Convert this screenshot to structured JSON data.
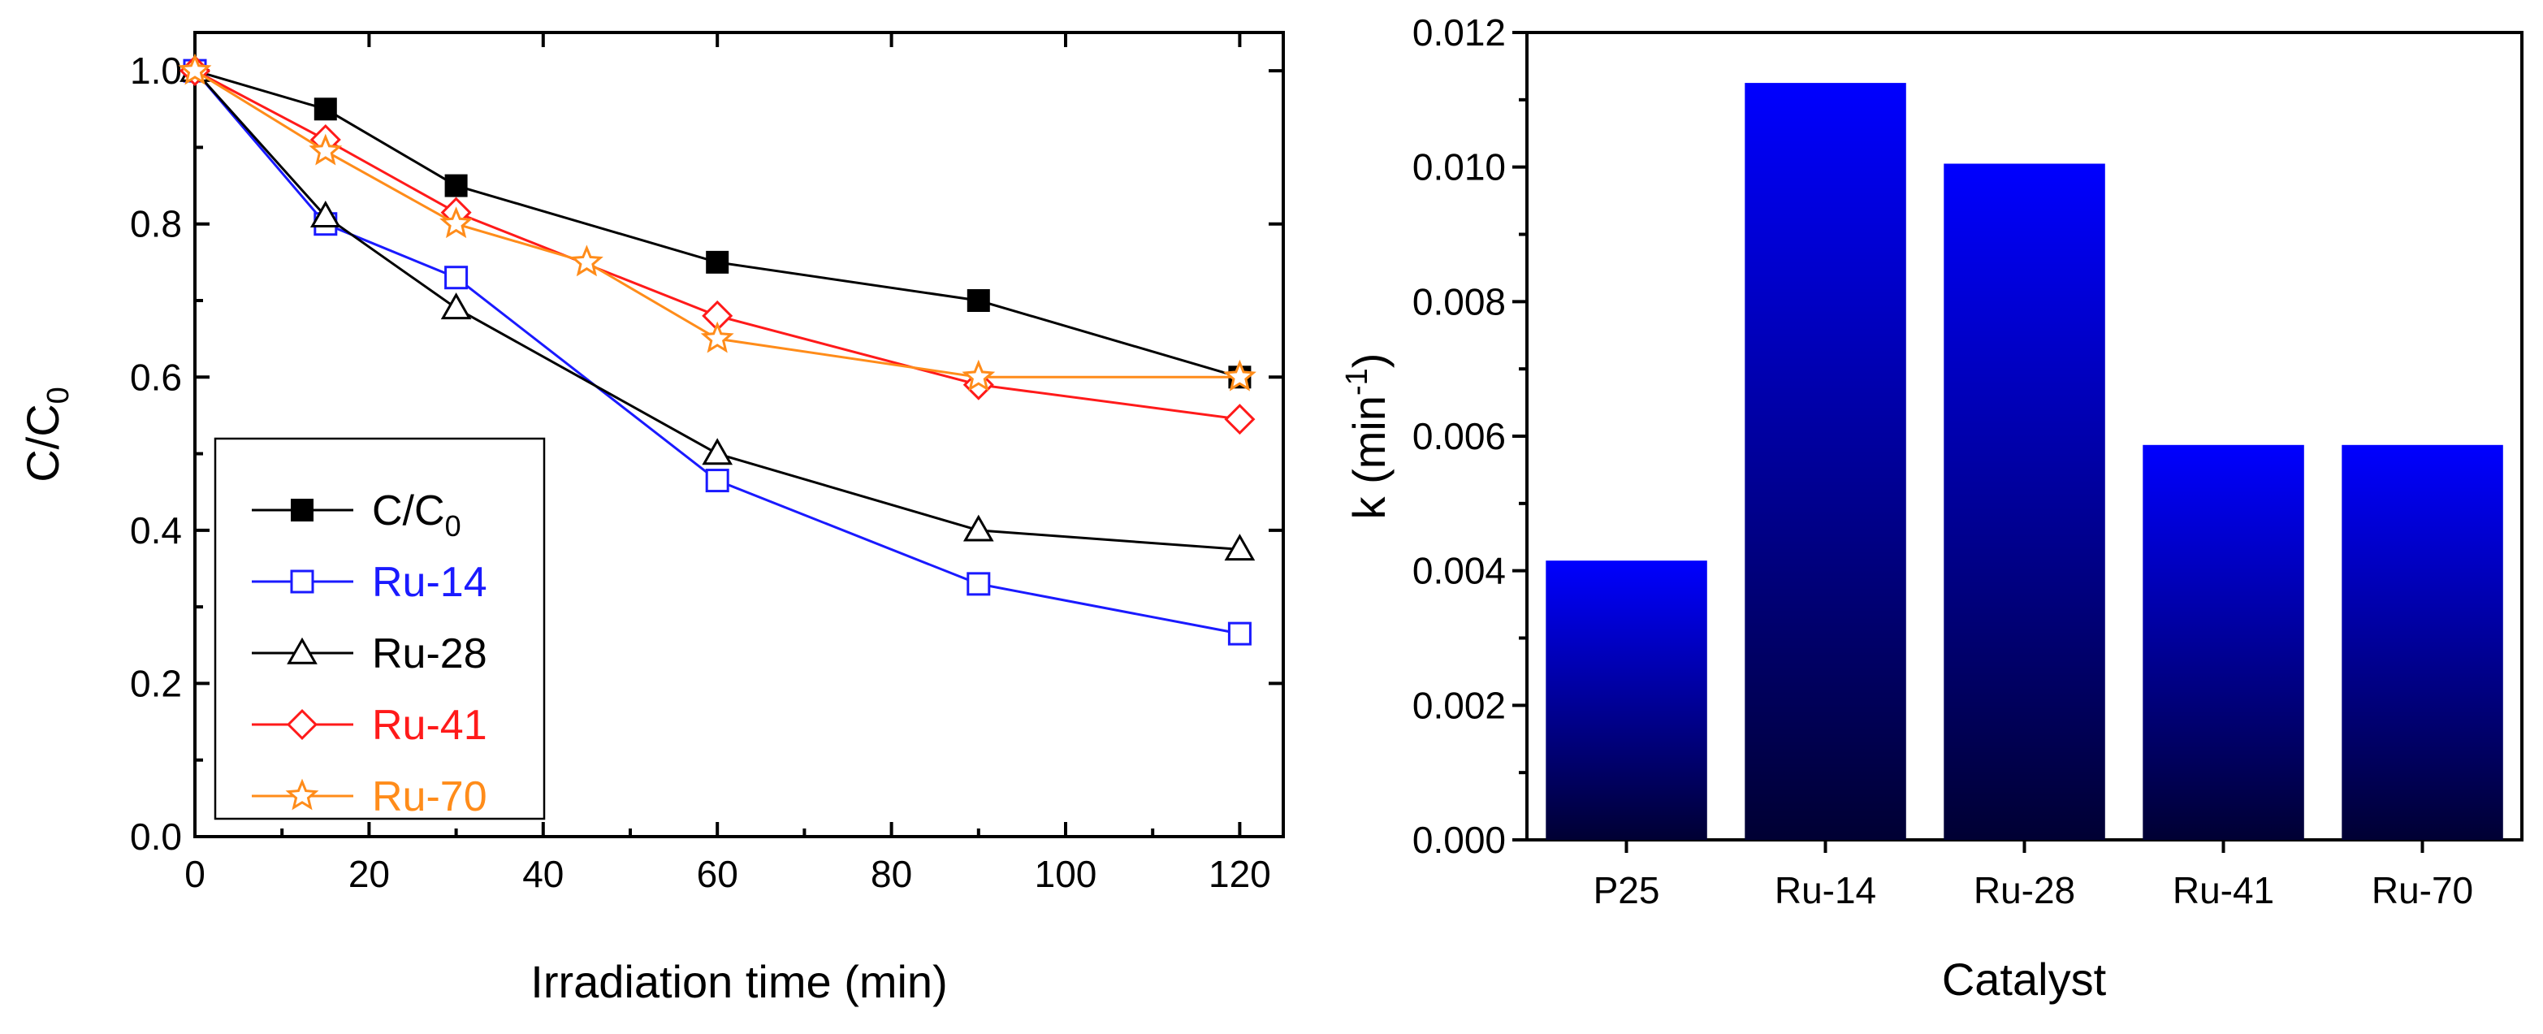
{
  "chart_data": [
    {
      "type": "line",
      "title": "",
      "xlabel": "Irradiation time (min)",
      "ylabel": "C/C",
      "ylabel_sub": "0",
      "xlim": [
        0,
        125
      ],
      "ylim": [
        0,
        1.05
      ],
      "xticks": [
        0,
        20,
        40,
        60,
        80,
        100,
        120
      ],
      "xtick_labels": [
        "0",
        "20",
        "40",
        "60",
        "80",
        "100",
        "120"
      ],
      "yticks": [
        0,
        0.2,
        0.4,
        0.6,
        0.8,
        1.0
      ],
      "ytick_labels": [
        "0.0",
        "0.2",
        "0.4",
        "0.6",
        "0.8",
        "1.0"
      ],
      "legend_position": "bottom-left",
      "series": [
        {
          "name": "C/C",
          "name_sub": "0",
          "color": "#000000",
          "marker": "filled-square",
          "x": [
            0,
            15,
            30,
            60,
            90,
            120
          ],
          "y": [
            1.0,
            0.95,
            0.85,
            0.75,
            0.7,
            0.6
          ]
        },
        {
          "name": "Ru-14",
          "color": "#1a1aff",
          "marker": "open-square",
          "x": [
            0,
            15,
            30,
            60,
            90,
            120
          ],
          "y": [
            1.0,
            0.8,
            0.73,
            0.465,
            0.33,
            0.265
          ]
        },
        {
          "name": "Ru-28",
          "color": "#000000",
          "marker": "open-triangle",
          "x": [
            0,
            15,
            30,
            60,
            90,
            120
          ],
          "y": [
            1.0,
            0.81,
            0.69,
            0.5,
            0.4,
            0.375
          ]
        },
        {
          "name": "Ru-41",
          "color": "#ff1a1a",
          "marker": "open-diamond",
          "x": [
            0,
            15,
            30,
            60,
            90,
            120
          ],
          "y": [
            1.0,
            0.91,
            0.815,
            0.68,
            0.59,
            0.545
          ]
        },
        {
          "name": "Ru-70",
          "color": "#ff8c1a",
          "marker": "open-star",
          "x": [
            0,
            15,
            30,
            45,
            60,
            90,
            120
          ],
          "y": [
            1.0,
            0.895,
            0.8,
            0.75,
            0.65,
            0.6,
            0.6
          ]
        }
      ]
    },
    {
      "type": "bar",
      "title": "",
      "xlabel": "Catalyst",
      "ylabel": "k (min",
      "ylabel_sup": "-1",
      "ylabel_tail": ")",
      "ylim": [
        0,
        0.012
      ],
      "yticks": [
        0,
        0.002,
        0.004,
        0.006,
        0.008,
        0.01,
        0.012
      ],
      "ytick_labels": [
        "0.000",
        "0.002",
        "0.004",
        "0.006",
        "0.008",
        "0.010",
        "0.012"
      ],
      "categories": [
        "P25",
        "Ru-14",
        "Ru-28",
        "Ru-41",
        "Ru-70"
      ],
      "values": [
        0.00415,
        0.01125,
        0.01005,
        0.00587,
        0.00587
      ],
      "bar_color_top": "#0000ff",
      "bar_color_bottom": "#000033"
    }
  ]
}
